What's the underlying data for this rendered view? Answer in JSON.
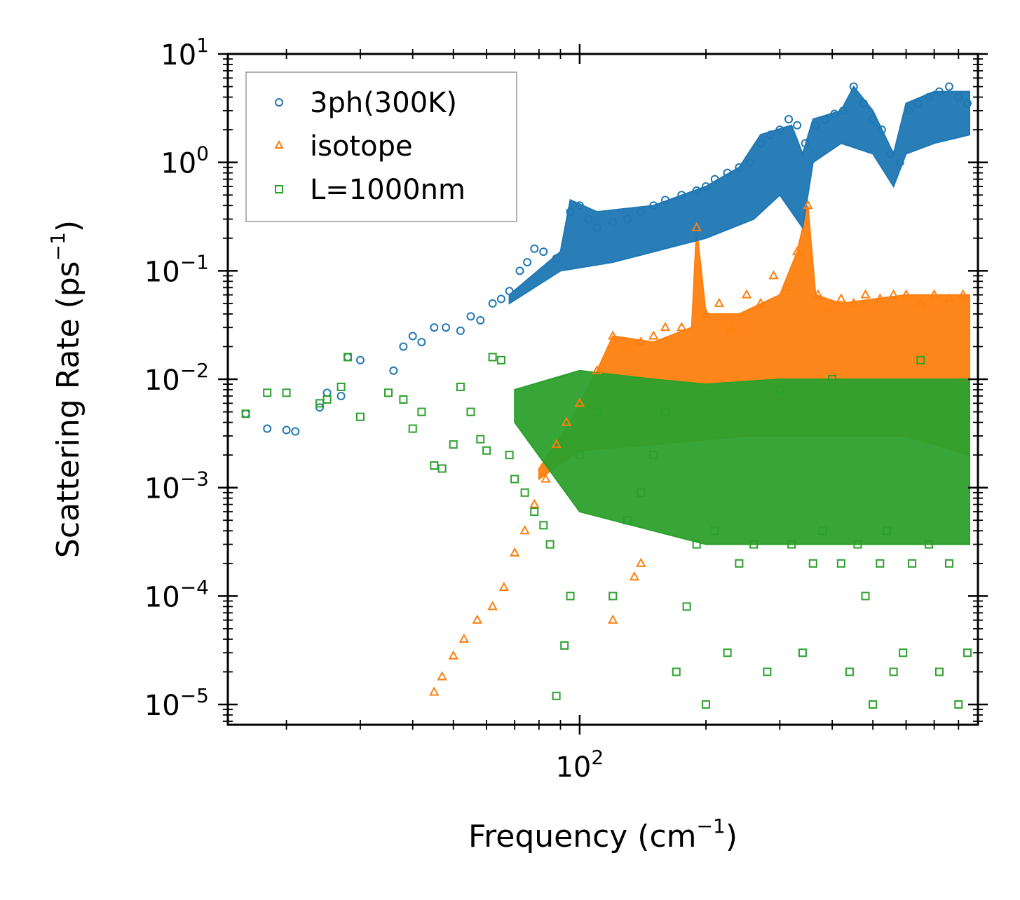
{
  "chart_data": {
    "type": "scatter",
    "xscale": "log",
    "yscale": "log",
    "xlabel": "Frequency (cm",
    "xlabel_sup": "−1",
    "xlabel_end": ")",
    "ylabel": "Scattering Rate (ps",
    "ylabel_sup": "−1",
    "ylabel_end": ")",
    "xlim": [
      14.5,
      890
    ],
    "ylim": [
      6.5e-06,
      10
    ],
    "x_major_ticks": [
      {
        "value": 100,
        "base": "10",
        "exp": "2"
      }
    ],
    "y_major_ticks": [
      {
        "value": 10,
        "base": "10",
        "exp": "1"
      },
      {
        "value": 1,
        "base": "10",
        "exp": "0"
      },
      {
        "value": 0.1,
        "base": "10",
        "exp": "−1"
      },
      {
        "value": 0.01,
        "base": "10",
        "exp": "−2"
      },
      {
        "value": 0.001,
        "base": "10",
        "exp": "−3"
      },
      {
        "value": 0.0001,
        "base": "10",
        "exp": "−4"
      },
      {
        "value": 1e-05,
        "base": "10",
        "exp": "−5"
      }
    ],
    "legend_position": "top-left",
    "series": [
      {
        "name": "3ph(300K)",
        "marker": "circle",
        "color": "#1f77b4",
        "points": [
          [
            16,
            0.0048
          ],
          [
            18,
            0.0035
          ],
          [
            20,
            0.0034
          ],
          [
            21,
            0.0033
          ],
          [
            24,
            0.0055
          ],
          [
            25,
            0.0075
          ],
          [
            27,
            0.007
          ],
          [
            28,
            0.016
          ],
          [
            30,
            0.015
          ],
          [
            36,
            0.012
          ],
          [
            38,
            0.02
          ],
          [
            40,
            0.025
          ],
          [
            42,
            0.022
          ],
          [
            45,
            0.03
          ],
          [
            48,
            0.03
          ],
          [
            52,
            0.028
          ],
          [
            55,
            0.038
          ],
          [
            58,
            0.035
          ],
          [
            62,
            0.05
          ],
          [
            65,
            0.055
          ],
          [
            68,
            0.065
          ],
          [
            72,
            0.1
          ],
          [
            75,
            0.12
          ],
          [
            78,
            0.16
          ],
          [
            82,
            0.15
          ],
          [
            88,
            0.13
          ],
          [
            95,
            0.35
          ],
          [
            100,
            0.4
          ],
          [
            105,
            0.3
          ],
          [
            110,
            0.25
          ],
          [
            120,
            0.28
          ],
          [
            130,
            0.3
          ],
          [
            140,
            0.35
          ],
          [
            150,
            0.4
          ],
          [
            160,
            0.45
          ],
          [
            175,
            0.5
          ],
          [
            190,
            0.55
          ],
          [
            200,
            0.6
          ],
          [
            210,
            0.7
          ],
          [
            225,
            0.8
          ],
          [
            240,
            0.9
          ],
          [
            255,
            1.0
          ],
          [
            270,
            1.5
          ],
          [
            285,
            1.8
          ],
          [
            300,
            2.0
          ],
          [
            315,
            2.5
          ],
          [
            330,
            2.2
          ],
          [
            345,
            1.5
          ],
          [
            365,
            2.2
          ],
          [
            385,
            2.5
          ],
          [
            405,
            2.8
          ],
          [
            425,
            3.0
          ],
          [
            450,
            5.0
          ],
          [
            475,
            3.5
          ],
          [
            500,
            2.5
          ],
          [
            525,
            2.0
          ],
          [
            550,
            1.2
          ],
          [
            580,
            1.0
          ],
          [
            610,
            3.0
          ],
          [
            640,
            3.5
          ],
          [
            680,
            4.0
          ],
          [
            720,
            4.5
          ],
          [
            760,
            5.0
          ],
          [
            800,
            4.0
          ],
          [
            840,
            3.5
          ]
        ]
      },
      {
        "name": "isotope",
        "marker": "triangle",
        "color": "#ff7f0e",
        "points": [
          [
            45,
            1.3e-05
          ],
          [
            47,
            1.8e-05
          ],
          [
            50,
            2.8e-05
          ],
          [
            53,
            4e-05
          ],
          [
            57,
            6e-05
          ],
          [
            62,
            8e-05
          ],
          [
            66,
            0.00012
          ],
          [
            70,
            0.00025
          ],
          [
            74,
            0.0004
          ],
          [
            78,
            0.0007
          ],
          [
            83,
            0.0012
          ],
          [
            88,
            0.0025
          ],
          [
            93,
            0.004
          ],
          [
            100,
            0.006
          ],
          [
            110,
            0.012
          ],
          [
            120,
            0.025
          ],
          [
            130,
            0.02
          ],
          [
            140,
            0.022
          ],
          [
            150,
            0.025
          ],
          [
            160,
            0.03
          ],
          [
            175,
            0.03
          ],
          [
            190,
            0.25
          ],
          [
            200,
            0.04
          ],
          [
            215,
            0.05
          ],
          [
            230,
            0.03
          ],
          [
            250,
            0.06
          ],
          [
            270,
            0.05
          ],
          [
            290,
            0.09
          ],
          [
            310,
            0.07
          ],
          [
            330,
            0.15
          ],
          [
            350,
            0.4
          ],
          [
            370,
            0.06
          ],
          [
            390,
            0.045
          ],
          [
            420,
            0.055
          ],
          [
            450,
            0.05
          ],
          [
            480,
            0.06
          ],
          [
            520,
            0.055
          ],
          [
            560,
            0.06
          ],
          [
            600,
            0.06
          ],
          [
            650,
            0.05
          ],
          [
            700,
            0.06
          ],
          [
            760,
            0.055
          ],
          [
            820,
            0.06
          ],
          [
            120,
            6e-05
          ],
          [
            135,
            0.00015
          ],
          [
            140,
            0.0002
          ]
        ]
      },
      {
        "name": "L=1000nm",
        "marker": "square",
        "color": "#2ca02c",
        "points": [
          [
            16,
            0.0048
          ],
          [
            18,
            0.0075
          ],
          [
            20,
            0.0075
          ],
          [
            24,
            0.006
          ],
          [
            25,
            0.0065
          ],
          [
            27,
            0.0085
          ],
          [
            28,
            0.016
          ],
          [
            30,
            0.0045
          ],
          [
            35,
            0.0075
          ],
          [
            38,
            0.0065
          ],
          [
            40,
            0.0035
          ],
          [
            42,
            0.005
          ],
          [
            45,
            0.0016
          ],
          [
            47,
            0.0015
          ],
          [
            50,
            0.0025
          ],
          [
            52,
            0.0085
          ],
          [
            55,
            0.005
          ],
          [
            58,
            0.0028
          ],
          [
            60,
            0.0022
          ],
          [
            62,
            0.016
          ],
          [
            65,
            0.015
          ],
          [
            68,
            0.002
          ],
          [
            70,
            0.0012
          ],
          [
            74,
            0.0009
          ],
          [
            78,
            0.0006
          ],
          [
            82,
            0.00045
          ],
          [
            85,
            0.0003
          ],
          [
            88,
            1.2e-05
          ],
          [
            92,
            3.5e-05
          ],
          [
            95,
            0.0001
          ],
          [
            100,
            0.002
          ],
          [
            110,
            0.005
          ],
          [
            120,
            0.0001
          ],
          [
            130,
            0.0005
          ],
          [
            140,
            0.0009
          ],
          [
            150,
            0.002
          ],
          [
            160,
            0.005
          ],
          [
            170,
            2e-05
          ],
          [
            180,
            8e-05
          ],
          [
            190,
            0.0003
          ],
          [
            200,
            1e-05
          ],
          [
            210,
            0.0004
          ],
          [
            225,
            3e-05
          ],
          [
            240,
            0.0002
          ],
          [
            260,
            0.0003
          ],
          [
            280,
            2e-05
          ],
          [
            300,
            0.008
          ],
          [
            320,
            0.0003
          ],
          [
            340,
            3e-05
          ],
          [
            360,
            0.0002
          ],
          [
            380,
            0.0004
          ],
          [
            400,
            0.01
          ],
          [
            420,
            0.0002
          ],
          [
            440,
            2e-05
          ],
          [
            460,
            0.0003
          ],
          [
            480,
            0.0001
          ],
          [
            500,
            1e-05
          ],
          [
            520,
            0.0002
          ],
          [
            540,
            0.0004
          ],
          [
            560,
            2e-05
          ],
          [
            590,
            3e-05
          ],
          [
            620,
            0.0002
          ],
          [
            650,
            0.015
          ],
          [
            680,
            0.0003
          ],
          [
            720,
            2e-05
          ],
          [
            760,
            0.0002
          ],
          [
            800,
            1e-05
          ],
          [
            840,
            3e-05
          ]
        ]
      }
    ]
  }
}
